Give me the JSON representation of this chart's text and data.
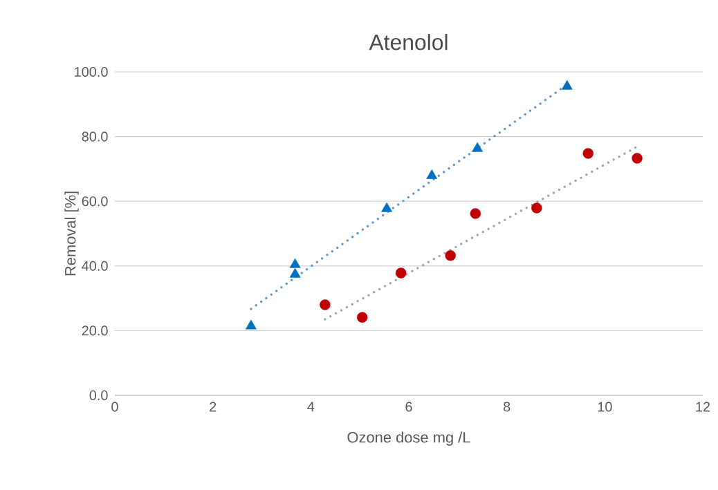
{
  "chart_data": {
    "type": "scatter",
    "title": "Atenolol",
    "xlabel": "Ozone dose mg /L",
    "ylabel": "Removal [%]",
    "xlim": [
      0,
      12
    ],
    "ylim": [
      0,
      100
    ],
    "xticks": [
      0,
      2,
      4,
      6,
      8,
      10,
      12
    ],
    "yticks": [
      {
        "value": 0,
        "label": "0.0"
      },
      {
        "value": 20,
        "label": "20.0"
      },
      {
        "value": 40,
        "label": "40.0"
      },
      {
        "value": 60,
        "label": "60.0"
      },
      {
        "value": 80,
        "label": "80.0"
      },
      {
        "value": 100,
        "label": "100.0"
      }
    ],
    "grid": "y",
    "series": [
      {
        "marker": "triangle",
        "color": "#0070c0",
        "x": [
          2.78,
          3.68,
          3.68,
          5.55,
          6.47,
          7.4,
          9.23
        ],
        "values": [
          21.4,
          40.4,
          37.4,
          57.7,
          67.9,
          76.3,
          95.5
        ]
      },
      {
        "marker": "circle",
        "color": "#c00000",
        "x": [
          4.29,
          5.05,
          5.84,
          6.85,
          7.36,
          8.61,
          9.66,
          10.66
        ],
        "values": [
          28.0,
          24.1,
          37.8,
          43.2,
          56.2,
          57.9,
          74.8,
          73.3
        ]
      },
      {
        "type": "line",
        "line_style": "dotted",
        "marker": "none",
        "color": "#5b9bd5",
        "x": [
          2.78,
          9.16
        ],
        "values": [
          26.7,
          95.3
        ]
      },
      {
        "type": "line",
        "line_style": "dotted",
        "marker": "none",
        "color": "#a5a5a5",
        "x": [
          4.29,
          10.64
        ],
        "values": [
          23.5,
          76.7
        ]
      }
    ]
  }
}
